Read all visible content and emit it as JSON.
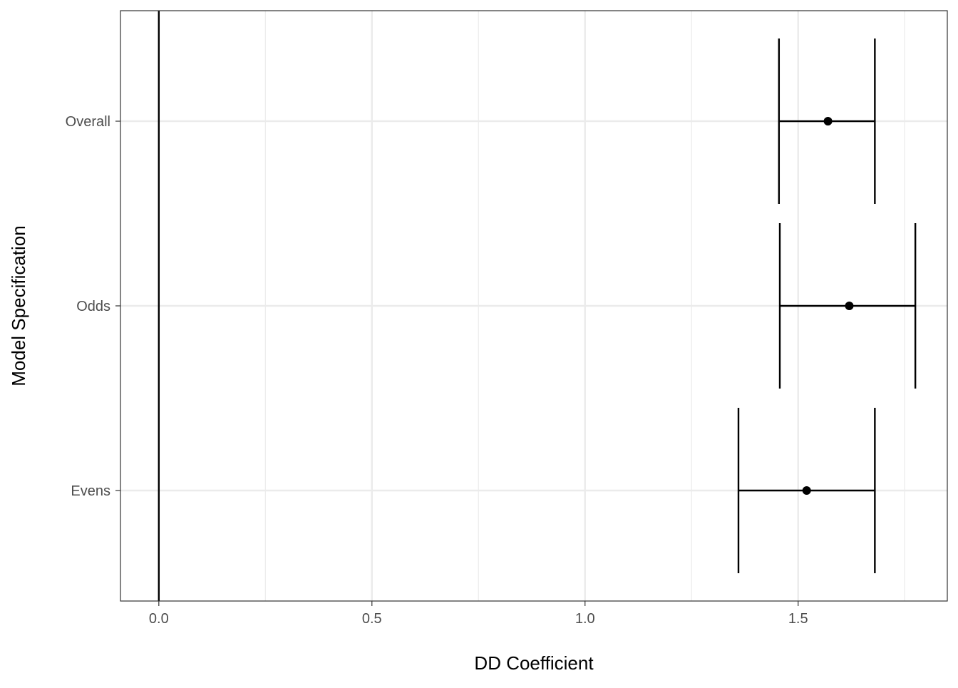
{
  "chart_data": {
    "type": "scatter",
    "subtype": "coefficient-plot-with-error-bars",
    "title": "",
    "xlabel": "DD Coefficient",
    "ylabel": "Model Specification",
    "xlim": [
      -0.09,
      1.85
    ],
    "x_ticks": [
      0.0,
      0.5,
      1.0,
      1.5
    ],
    "x_tick_labels": [
      "0.0",
      "0.5",
      "1.0",
      "1.5"
    ],
    "x_minor_ticks": [
      0.25,
      0.75,
      1.25,
      1.75
    ],
    "categories": [
      "Overall",
      "Odds",
      "Evens"
    ],
    "points": [
      {
        "label": "Overall",
        "estimate": 1.57,
        "ci_low": 1.455,
        "ci_high": 1.68
      },
      {
        "label": "Odds",
        "estimate": 1.62,
        "ci_low": 1.457,
        "ci_high": 1.775
      },
      {
        "label": "Evens",
        "estimate": 1.52,
        "ci_low": 1.36,
        "ci_high": 1.68
      }
    ],
    "reference_line": {
      "x": 0.0
    },
    "grid": true,
    "legend": "none",
    "colors": {
      "marks": "#000000",
      "grid": "#ebebeb",
      "panel_border": "#333333",
      "tick_text": "#4d4d4d"
    }
  }
}
